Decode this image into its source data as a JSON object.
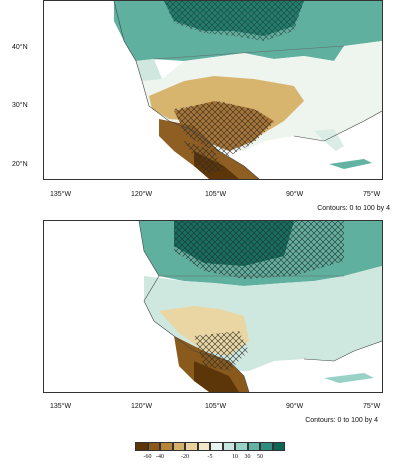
{
  "top_map": {
    "lat_labels": [
      "40°N",
      "30°N",
      "20°N"
    ],
    "lon_labels": [
      "135°W",
      "120°W",
      "105°W",
      "90°W",
      "75°W"
    ],
    "contour_note": "Contours: 0 to 100 by 4"
  },
  "bottom_map": {
    "lon_labels": [
      "135°W",
      "120°W",
      "105°W",
      "90°W",
      "75°W"
    ],
    "contour_note": "Contours: 0 to 100 by 4"
  },
  "colorbar": {
    "labels": [
      "-60",
      "-40",
      "-20",
      "-5",
      "10",
      "30",
      "50"
    ],
    "colors": [
      "#5c3508",
      "#8a5a1c",
      "#b7853a",
      "#d5b06a",
      "#e8d39e",
      "#f3e8c8",
      "#e9f3ef",
      "#c6e6df",
      "#98d1c6",
      "#63b3a4",
      "#2f8f7e",
      "#0b6656"
    ]
  }
}
